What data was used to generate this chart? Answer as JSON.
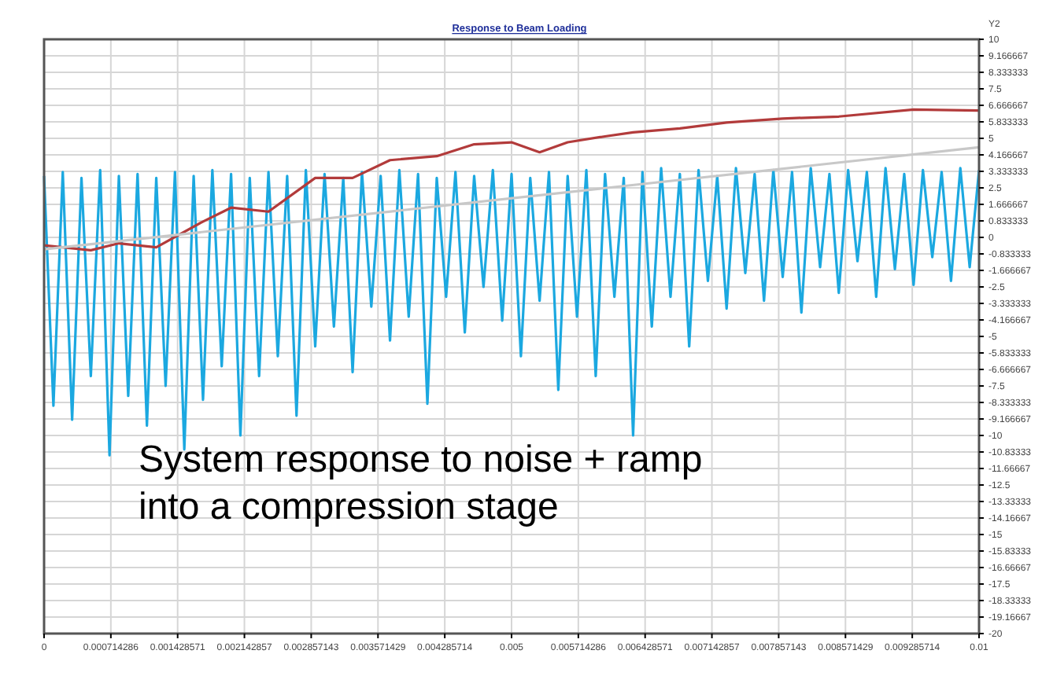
{
  "chart_data": {
    "type": "line",
    "title": "Response to Beam Loading",
    "y2label": "Y2",
    "xlim": [
      0,
      0.01
    ],
    "xticks": [
      0,
      0.000714286,
      0.001428571,
      0.002142857,
      0.002857143,
      0.003571429,
      0.004285714,
      0.005,
      0.005714286,
      0.006428571,
      0.007142857,
      0.007857143,
      0.008571429,
      0.009285714,
      0.01
    ],
    "y2lim": [
      -20,
      10
    ],
    "y2ticks": [
      10,
      9.166667,
      8.333333,
      7.5,
      6.666667,
      5.833333,
      5,
      4.166667,
      3.333333,
      2.5,
      1.666667,
      0.833333,
      0,
      -0.833333,
      -1.666667,
      -2.5,
      -3.333333,
      -4.166667,
      -5,
      -5.833333,
      -6.666667,
      -7.5,
      -8.333333,
      -9.166667,
      -10,
      -10.83333,
      -11.66667,
      -12.5,
      -13.33333,
      -14.16667,
      -15,
      -15.83333,
      -16.66667,
      -17.5,
      -18.33333,
      -19.16667,
      -20
    ],
    "grid": true,
    "line_style": "solid",
    "marker": "none",
    "annotations": [
      "System response to noise + ramp into a compression stage"
    ],
    "series": [
      {
        "axis": "y2",
        "color": "#1ba8e0",
        "x": [
          0,
          0.0001,
          0.0002,
          0.0003,
          0.0004,
          0.0005,
          0.0006,
          0.0007,
          0.0008,
          0.0009,
          0.001,
          0.0011,
          0.0012,
          0.0013,
          0.0014,
          0.0015,
          0.0016,
          0.0017,
          0.0018,
          0.0019,
          0.002,
          0.0021,
          0.0022,
          0.0023,
          0.0024,
          0.0025,
          0.0026,
          0.0027,
          0.0028,
          0.0029,
          0.003,
          0.0031,
          0.0032,
          0.0033,
          0.0034,
          0.0035,
          0.0036,
          0.0037,
          0.0038,
          0.0039,
          0.004,
          0.0041,
          0.0042,
          0.0043,
          0.0044,
          0.0045,
          0.0046,
          0.0047,
          0.0048,
          0.0049,
          0.005,
          0.0051,
          0.0052,
          0.0053,
          0.0054,
          0.0055,
          0.0056,
          0.0057,
          0.0058,
          0.0059,
          0.006,
          0.0061,
          0.0062,
          0.0063,
          0.0064,
          0.0065,
          0.0066,
          0.0067,
          0.0068,
          0.0069,
          0.007,
          0.0071,
          0.0072,
          0.0073,
          0.0074,
          0.0075,
          0.0076,
          0.0077,
          0.0078,
          0.0079,
          0.008,
          0.0081,
          0.0082,
          0.0083,
          0.0084,
          0.0085,
          0.0086,
          0.0087,
          0.0088,
          0.0089,
          0.009,
          0.0091,
          0.0092,
          0.0093,
          0.0094,
          0.0095,
          0.0096,
          0.0097,
          0.0098,
          0.0099,
          0.01
        ],
        "values": [
          3.1,
          -8.5,
          3.3,
          -9.2,
          3.0,
          -7.0,
          3.4,
          -11.0,
          3.1,
          -8.0,
          3.2,
          -9.5,
          3.0,
          -7.5,
          3.3,
          -10.7,
          3.1,
          -8.2,
          3.4,
          -6.5,
          3.2,
          -10.0,
          3.0,
          -7.0,
          3.3,
          -6.0,
          3.1,
          -9.0,
          3.4,
          -5.5,
          3.2,
          -4.5,
          3.0,
          -6.8,
          3.3,
          -3.5,
          3.1,
          -5.2,
          3.4,
          -4.0,
          3.2,
          -8.4,
          3.0,
          -3.0,
          3.3,
          -4.8,
          3.1,
          -2.5,
          3.4,
          -4.2,
          3.2,
          -6.0,
          3.0,
          -3.2,
          3.3,
          -7.7,
          3.1,
          -4.0,
          3.4,
          -7.0,
          3.2,
          -3.0,
          3.0,
          -10.0,
          3.3,
          -4.5,
          3.5,
          -3.0,
          3.2,
          -5.5,
          3.4,
          -2.2,
          3.1,
          -3.6,
          3.5,
          -1.8,
          3.2,
          -3.2,
          3.4,
          -2.0,
          3.3,
          -3.8,
          3.5,
          -1.5,
          3.2,
          -2.8,
          3.4,
          -1.2,
          3.3,
          -3.0,
          3.5,
          -1.6,
          3.2,
          -2.4,
          3.4,
          -1.0,
          3.3,
          -2.2,
          3.5,
          -1.5,
          3.4
        ]
      },
      {
        "axis": "y2",
        "color": "#b23b3b",
        "x": [
          0,
          0.0005,
          0.0008,
          0.0012,
          0.0017,
          0.002,
          0.0024,
          0.0029,
          0.0033,
          0.0037,
          0.0042,
          0.0046,
          0.005,
          0.0053,
          0.0056,
          0.006,
          0.0063,
          0.0068,
          0.0073,
          0.0079,
          0.0085,
          0.0093,
          0.01
        ],
        "values": [
          -0.4,
          -0.65,
          -0.3,
          -0.5,
          0.8,
          1.5,
          1.3,
          3.0,
          3.0,
          3.9,
          4.1,
          4.7,
          4.8,
          4.3,
          4.8,
          5.1,
          5.3,
          5.5,
          5.8,
          6.0,
          6.1,
          6.45,
          6.4
        ]
      },
      {
        "axis": "y2",
        "color": "#c8c8c8",
        "x": [
          0,
          0.01
        ],
        "values": [
          -0.6,
          4.55
        ]
      }
    ]
  }
}
